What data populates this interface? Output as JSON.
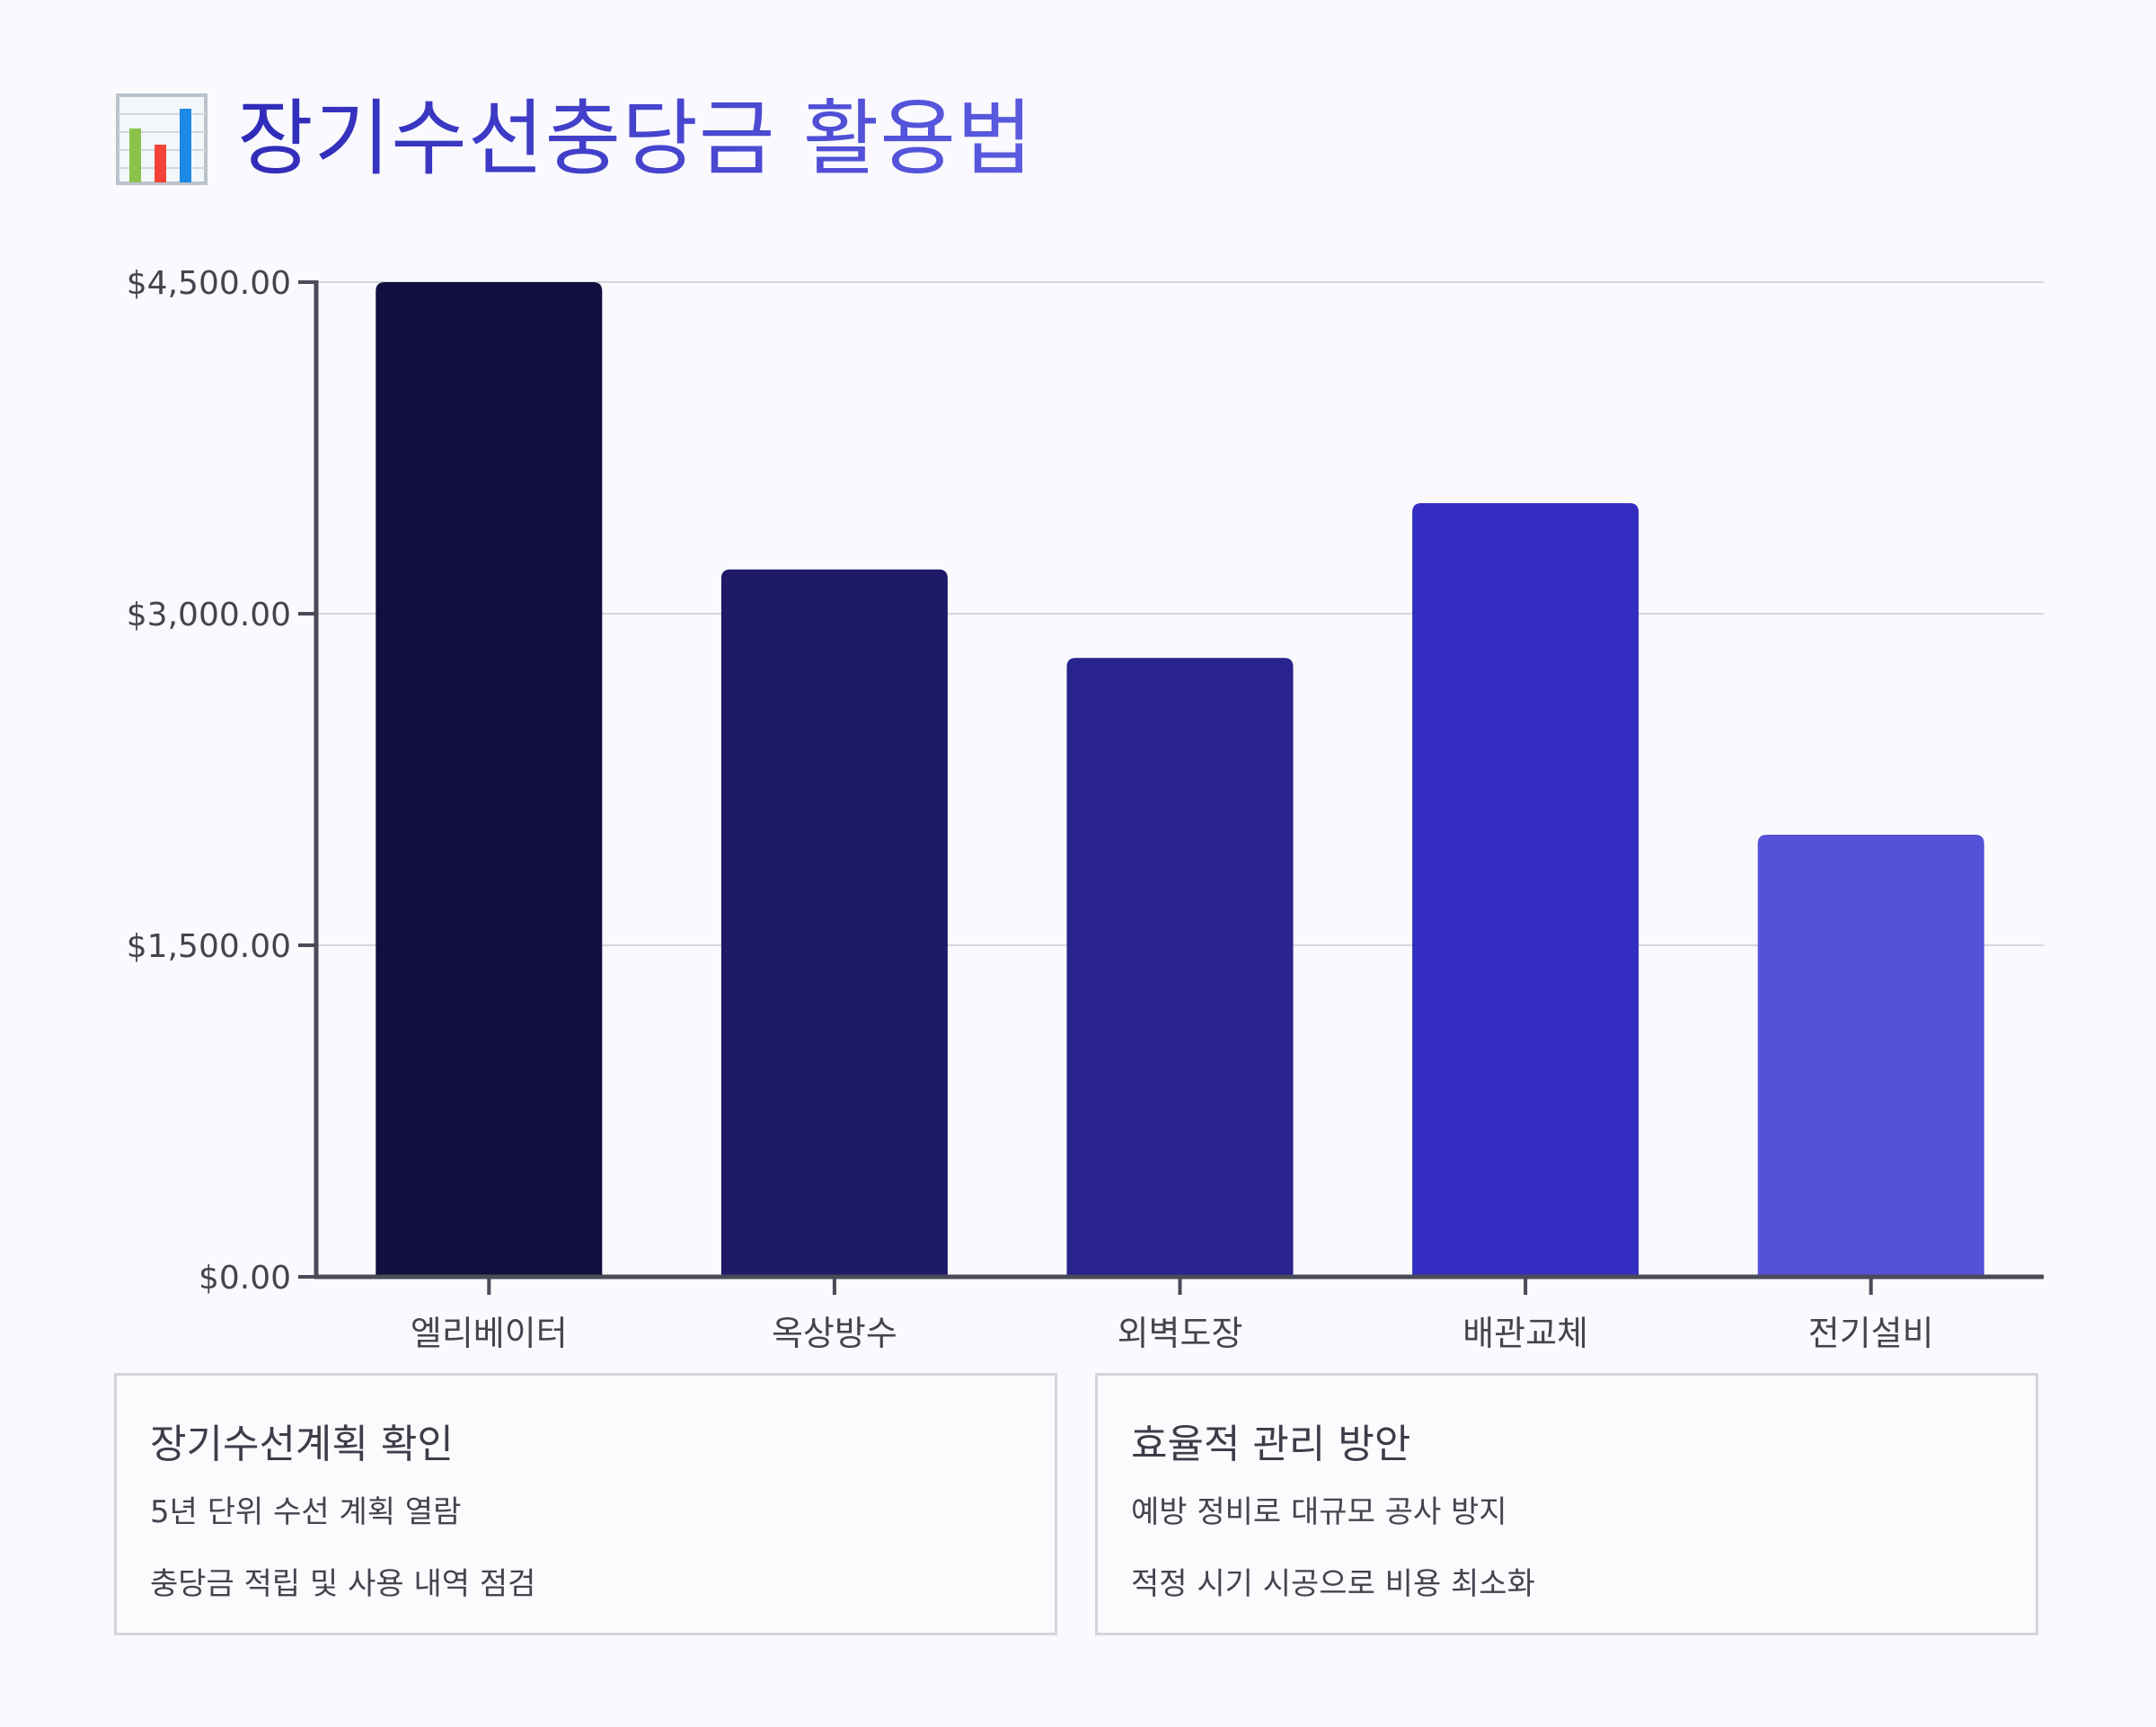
{
  "header": {
    "icon": "bar-chart-icon",
    "title": "장기수선충당금 활용법"
  },
  "chart_data": {
    "type": "bar",
    "categories": [
      "엘리베이터",
      "옥상방수",
      "외벽도장",
      "배관교체",
      "전기설비"
    ],
    "values": [
      4500,
      3200,
      2800,
      3500,
      2000
    ],
    "colors": [
      "#110f3d",
      "#1e1a68",
      "#29238f",
      "#332ec1",
      "#5452d6"
    ],
    "yticks": [
      0,
      1500,
      3000,
      4500
    ],
    "ytick_labels": [
      "$0.00",
      "$1,500.00",
      "$3,000.00",
      "$4,500.00"
    ],
    "ylim": [
      0,
      4500
    ],
    "grid": true
  },
  "cards": [
    {
      "title": "장기수선계획 확인",
      "lines": [
        "5년 단위 수선 계획 열람",
        "충당금 적립 및 사용 내역 점검"
      ]
    },
    {
      "title": "효율적 관리 방안",
      "lines": [
        "예방 정비로 대규모 공사 방지",
        "적정 시기 시공으로 비용 최소화"
      ]
    }
  ]
}
